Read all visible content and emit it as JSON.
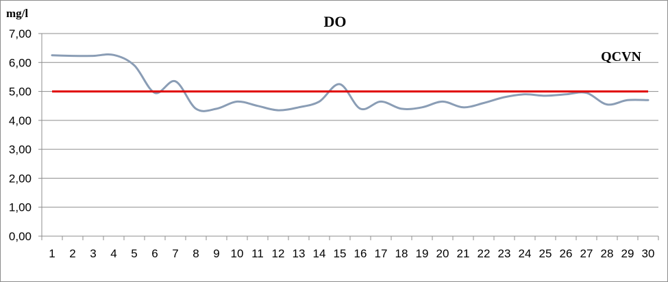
{
  "chart_data": {
    "type": "line",
    "title": "DO",
    "ylabel": "mg/l",
    "xlabel": "",
    "ylim": [
      0,
      7
    ],
    "y_ticks": [
      "0,00",
      "1,00",
      "2,00",
      "3,00",
      "4,00",
      "5,00",
      "6,00",
      "7,00"
    ],
    "grid": "horizontal",
    "categories": [
      "1",
      "2",
      "3",
      "4",
      "5",
      "6",
      "7",
      "8",
      "9",
      "10",
      "11",
      "12",
      "13",
      "14",
      "15",
      "16",
      "17",
      "18",
      "19",
      "20",
      "21",
      "22",
      "23",
      "24",
      "25",
      "26",
      "27",
      "28",
      "29",
      "30"
    ],
    "series": [
      {
        "values": [
          6.25,
          6.23,
          6.23,
          6.26,
          5.9,
          4.95,
          5.35,
          4.4,
          4.4,
          4.65,
          4.5,
          4.35,
          4.45,
          4.65,
          5.25,
          4.4,
          4.65,
          4.4,
          4.45,
          4.65,
          4.45,
          4.6,
          4.8,
          4.9,
          4.85,
          4.9,
          4.95,
          4.55,
          4.7,
          4.7
        ],
        "color": "#8a9db5"
      },
      {
        "name": "QCVN",
        "values": [
          5,
          5,
          5,
          5,
          5,
          5,
          5,
          5,
          5,
          5,
          5,
          5,
          5,
          5,
          5,
          5,
          5,
          5,
          5,
          5,
          5,
          5,
          5,
          5,
          5,
          5,
          5,
          5,
          5,
          5
        ],
        "color": "#e00000"
      }
    ]
  }
}
